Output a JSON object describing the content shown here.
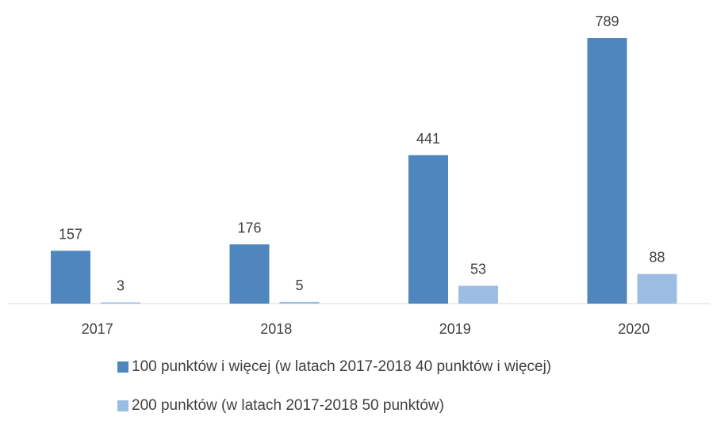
{
  "chart_data": {
    "type": "bar",
    "categories": [
      "2017",
      "2018",
      "2019",
      "2020"
    ],
    "series": [
      {
        "name": "100 punktów i więcej (w latach 2017-2018 40 punktów i więcej)",
        "values": [
          157,
          176,
          441,
          789
        ],
        "color": "#4f86bd"
      },
      {
        "name": "200 punktów (w latach 2017-2018 50 punktów)",
        "values": [
          3,
          5,
          53,
          88
        ],
        "color": "#9cbde3"
      }
    ],
    "ylim": [
      0,
      789
    ],
    "grid": false,
    "legend_position": "bottom",
    "data_labels": true
  }
}
